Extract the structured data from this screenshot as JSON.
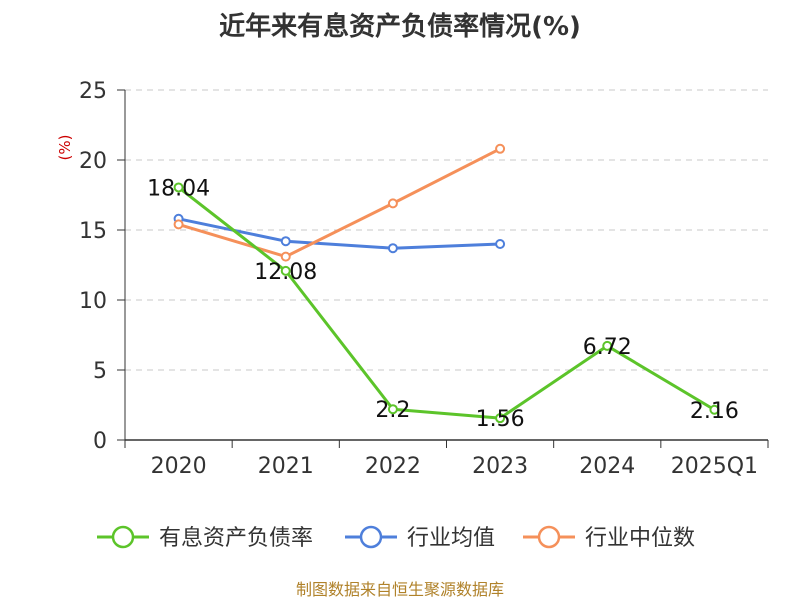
{
  "chart_data": {
    "type": "line",
    "title": "近年来有息资产负债率情况(%)",
    "ylabel": "(%)",
    "xlabel": "",
    "categories": [
      "2020",
      "2021",
      "2022",
      "2023",
      "2024",
      "2025Q1"
    ],
    "ylim": [
      0,
      25
    ],
    "yticks": [
      0,
      5,
      10,
      15,
      20,
      25
    ],
    "grid": true,
    "legend_position": "bottom",
    "series": [
      {
        "name": "有息资产负债率",
        "color": "#5cc42a",
        "values": [
          18.04,
          12.08,
          2.2,
          1.56,
          6.72,
          2.16
        ],
        "labels": [
          "18.04",
          "12.08",
          "2.2",
          "1.56",
          "6.72",
          "2.16"
        ]
      },
      {
        "name": "行业均值",
        "color": "#4e7fdb",
        "values": [
          15.8,
          14.2,
          13.7,
          14.0,
          null,
          null
        ]
      },
      {
        "name": "行业中位数",
        "color": "#f5905a",
        "values": [
          15.4,
          13.1,
          16.9,
          20.8,
          null,
          null
        ]
      }
    ]
  },
  "footer": {
    "source": "制图数据来自恒生聚源数据库"
  }
}
